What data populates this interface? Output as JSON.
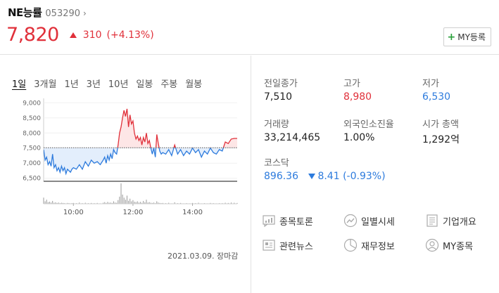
{
  "stock": {
    "name": "NE능률",
    "code": "053290",
    "price": "7,820",
    "change": "310",
    "change_pct": "(+4.13%)",
    "my_button": "MY등록"
  },
  "tabs": [
    "1일",
    "3개월",
    "1년",
    "3년",
    "10년",
    "일봉",
    "주봉",
    "월봉"
  ],
  "stats": {
    "prev_close": {
      "label": "전일종가",
      "value": "7,510"
    },
    "high": {
      "label": "고가",
      "value": "8,980"
    },
    "low": {
      "label": "저가",
      "value": "6,530"
    },
    "volume": {
      "label": "거래량",
      "value": "33,214,465"
    },
    "foreign": {
      "label": "외국인소진율",
      "value": "1.00%"
    },
    "market_cap": {
      "label": "시가 총액",
      "value": "1,292억"
    },
    "index": {
      "label": "코스닥",
      "value": "896.36",
      "change": "8.41 (-0.93%)"
    }
  },
  "links": [
    {
      "label": "종목토론",
      "icon": "discussion-icon"
    },
    {
      "label": "일별시세",
      "icon": "trend-icon"
    },
    {
      "label": "기업개요",
      "icon": "document-icon"
    },
    {
      "label": "관련뉴스",
      "icon": "news-icon"
    },
    {
      "label": "재무정보",
      "icon": "pie-chart-icon"
    },
    {
      "label": "MY종목",
      "icon": "user-icon"
    }
  ],
  "chart_date": "2021.03.09. 장마감",
  "colors": {
    "up": "#e0303a",
    "down": "#2d7bdd"
  },
  "chart_data": {
    "type": "line",
    "baseline": 7510,
    "ylim": [
      6400,
      9100
    ],
    "y_ticks": [
      "9,000",
      "8,500",
      "8,000",
      "7,500",
      "7,000",
      "6,500"
    ],
    "y_tick_values": [
      9000,
      8500,
      8000,
      7500,
      7000,
      6500
    ],
    "x_range": [
      9.0,
      15.5
    ],
    "x_ticks": [
      "10:00",
      "12:00",
      "14:00"
    ],
    "x_tick_values": [
      10,
      12,
      14
    ],
    "x": [
      9.0,
      9.05,
      9.1,
      9.15,
      9.2,
      9.25,
      9.3,
      9.35,
      9.4,
      9.45,
      9.5,
      9.55,
      9.6,
      9.65,
      9.7,
      9.75,
      9.8,
      9.85,
      9.9,
      9.95,
      10.0,
      10.1,
      10.2,
      10.3,
      10.4,
      10.5,
      10.6,
      10.7,
      10.8,
      10.9,
      11.0,
      11.05,
      11.1,
      11.15,
      11.2,
      11.25,
      11.3,
      11.35,
      11.4,
      11.45,
      11.5,
      11.55,
      11.6,
      11.65,
      11.7,
      11.75,
      11.8,
      11.85,
      11.9,
      11.95,
      12.0,
      12.05,
      12.1,
      12.15,
      12.2,
      12.25,
      12.3,
      12.35,
      12.4,
      12.45,
      12.5,
      12.55,
      12.6,
      12.65,
      12.7,
      12.75,
      12.8,
      12.85,
      12.9,
      12.95,
      13.0,
      13.1,
      13.2,
      13.3,
      13.4,
      13.5,
      13.6,
      13.7,
      13.8,
      13.9,
      14.0,
      14.1,
      14.2,
      14.3,
      14.4,
      14.5,
      14.6,
      14.7,
      14.8,
      14.9,
      15.0,
      15.1,
      15.2,
      15.3,
      15.4,
      15.5
    ],
    "y": [
      7450,
      7100,
      7200,
      6950,
      7050,
      6900,
      7300,
      6850,
      6950,
      6750,
      6850,
      6700,
      6900,
      6750,
      6850,
      6650,
      6800,
      6750,
      6700,
      6800,
      6850,
      6800,
      6950,
      6800,
      7050,
      6900,
      7100,
      7000,
      7050,
      6950,
      7100,
      7200,
      7000,
      7250,
      7100,
      7300,
      7150,
      7450,
      7350,
      7300,
      7600,
      8000,
      8200,
      8500,
      8750,
      8550,
      8800,
      8200,
      8600,
      8300,
      8400,
      8000,
      7800,
      7900,
      7750,
      7850,
      7600,
      7850,
      7700,
      8000,
      7650,
      7750,
      7500,
      7300,
      7500,
      7200,
      7950,
      7650,
      7400,
      7300,
      7350,
      7300,
      7450,
      7250,
      7600,
      7300,
      7450,
      7250,
      7400,
      7300,
      7500,
      7350,
      7450,
      7200,
      7400,
      7300,
      7500,
      7350,
      7300,
      7450,
      7400,
      7700,
      7650,
      7800,
      7820,
      7820
    ],
    "volume": [
      30,
      12,
      20,
      8,
      10,
      6,
      14,
      5,
      7,
      4,
      6,
      3,
      5,
      4,
      3,
      2,
      4,
      3,
      2,
      3,
      4,
      3,
      6,
      3,
      5,
      3,
      4,
      3,
      4,
      2,
      5,
      8,
      4,
      9,
      5,
      6,
      4,
      12,
      6,
      5,
      18,
      35,
      100,
      45,
      30,
      20,
      40,
      15,
      25,
      12,
      18,
      10,
      8,
      12,
      6,
      9,
      5,
      14,
      7,
      20,
      6,
      8,
      5,
      4,
      6,
      3,
      12,
      6,
      4,
      3,
      4,
      3,
      5,
      2,
      7,
      3,
      4,
      2,
      3,
      2,
      4,
      3,
      5,
      2,
      3,
      2,
      4,
      3,
      2,
      3,
      3,
      5,
      4,
      6,
      5,
      4
    ]
  }
}
